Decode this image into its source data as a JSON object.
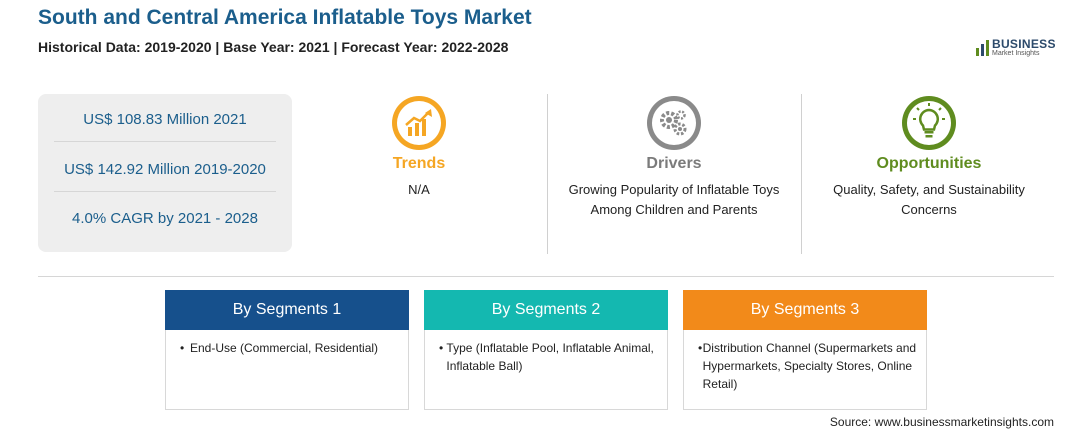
{
  "header": {
    "title": "South and Central America Inflatable Toys Market",
    "subtitle": "Historical Data: 2019-2020 | Base Year: 2021 | Forecast Year: 2022-2028"
  },
  "logo": {
    "main": "BUSINESS",
    "sub": "Market Insights"
  },
  "stats": [
    "US$ 108.83 Million 2021",
    "US$ 142.92 Million 2019-2020",
    "4.0% CAGR by 2021 - 2028"
  ],
  "factors": {
    "trends": {
      "label": "Trends",
      "text": "N/A",
      "color": "#f5a623",
      "icon": "rising-chart-icon"
    },
    "drivers": {
      "label": "Drivers",
      "text": "Growing Popularity of Inflatable Toys Among Children and Parents",
      "color": "#7b7b7b",
      "icon": "gears-icon"
    },
    "opportunities": {
      "label": "Opportunities",
      "text": "Quality, Safety, and Sustainability Concerns",
      "color": "#5f8c1f",
      "icon": "lightbulb-icon"
    }
  },
  "segments": [
    {
      "title": "By Segments 1",
      "color": "#16508c",
      "bullet": "End-Use (Commercial, Residential)"
    },
    {
      "title": "By Segments 2",
      "color": "#14b8b0",
      "bullet": "Type (Inflatable Pool, Inflatable Animal, Inflatable Ball)"
    },
    {
      "title": "By Segments 3",
      "color": "#f28a1a",
      "bullet": "Distribution Channel (Supermarkets and Hypermarkets, Specialty Stores, Online Retail)"
    }
  ],
  "source": "Source: www.businessmarketinsights.com"
}
